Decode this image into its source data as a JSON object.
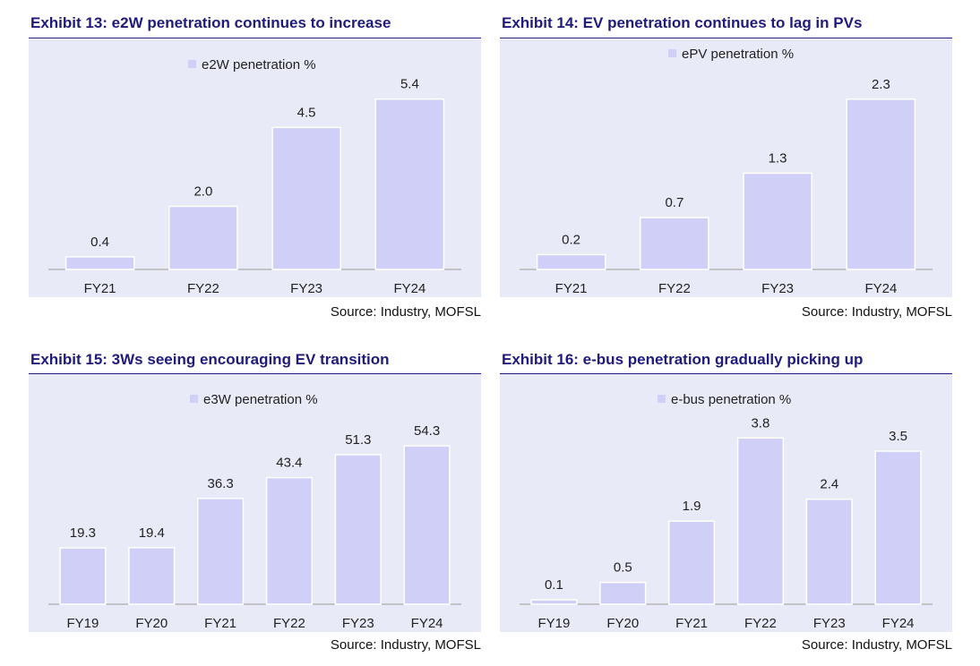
{
  "chart_data": [
    {
      "type": "bar",
      "title": "Exhibit 13: e2W penetration continues to increase",
      "legend": "e2W penetration %",
      "categories": [
        "FY21",
        "FY22",
        "FY23",
        "FY24"
      ],
      "values": [
        0.4,
        2.0,
        4.5,
        5.4
      ],
      "value_labels": [
        "0.4",
        "2.0",
        "4.5",
        "5.4"
      ],
      "ylim": [
        0,
        6.1
      ],
      "source": "Source: Industry, MOFSL",
      "bar_color": "#cfcff7"
    },
    {
      "type": "bar",
      "title": "Exhibit 14: EV penetration continues to lag in PVs",
      "legend": "ePV penetration %",
      "categories": [
        "FY21",
        "FY22",
        "FY23",
        "FY24"
      ],
      "values": [
        0.2,
        0.7,
        1.3,
        2.3
      ],
      "value_labels": [
        "0.2",
        "0.7",
        "1.3",
        "2.3"
      ],
      "ylim": [
        0,
        2.6
      ],
      "source": "Source: Industry, MOFSL",
      "bar_color": "#cfcff7"
    },
    {
      "type": "bar",
      "title": "Exhibit 15: 3Ws seeing encouraging EV transition",
      "legend": "e3W penetration %",
      "categories": [
        "FY19",
        "FY20",
        "FY21",
        "FY22",
        "FY23",
        "FY24"
      ],
      "values": [
        19.3,
        19.4,
        36.3,
        43.4,
        51.3,
        54.3
      ],
      "value_labels": [
        "19.3",
        "19.4",
        "36.3",
        "43.4",
        "51.3",
        "54.3"
      ],
      "ylim": [
        0,
        66
      ],
      "source": "Source: Industry, MOFSL",
      "bar_color": "#cfcff7"
    },
    {
      "type": "bar",
      "title": "Exhibit 16: e-bus penetration gradually picking up",
      "legend": "e-bus penetration %",
      "categories": [
        "FY19",
        "FY20",
        "FY21",
        "FY22",
        "FY23",
        "FY24"
      ],
      "values": [
        0.1,
        0.5,
        1.9,
        3.8,
        2.4,
        3.5
      ],
      "value_labels": [
        "0.1",
        "0.5",
        "1.9",
        "3.8",
        "2.4",
        "3.5"
      ],
      "ylim": [
        0,
        4.4
      ],
      "source": "Source: Industry, MOFSL",
      "bar_color": "#cfcff7"
    }
  ]
}
